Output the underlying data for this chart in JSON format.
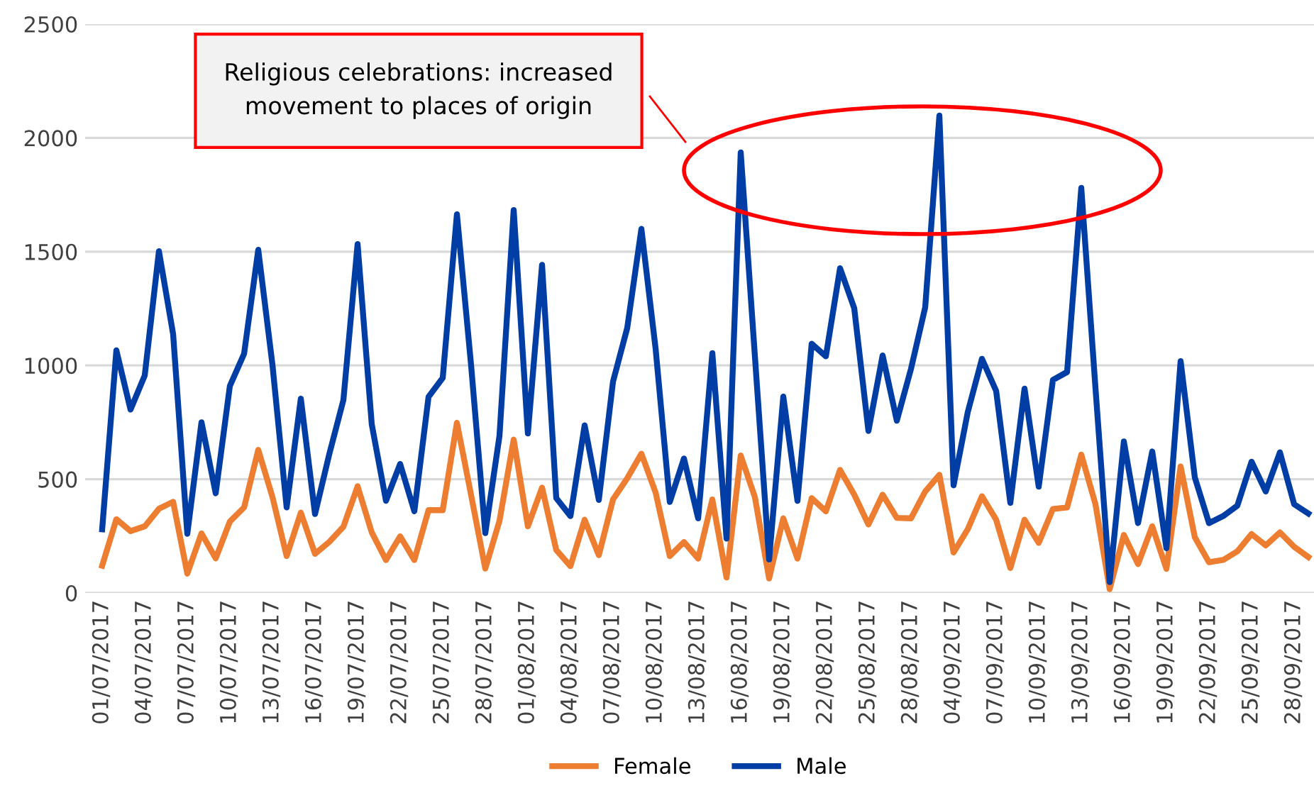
{
  "chart_data": {
    "type": "line",
    "categories": [
      "01/07/2017",
      null,
      null,
      "04/07/2017",
      null,
      null,
      "07/07/2017",
      null,
      null,
      "10/07/2017",
      null,
      null,
      "13/07/2017",
      null,
      null,
      "16/07/2017",
      null,
      null,
      "19/07/2017",
      null,
      null,
      "22/07/2017",
      null,
      null,
      "25/07/2017",
      null,
      null,
      "28/07/2017",
      null,
      null,
      "01/08/2017",
      null,
      null,
      "04/08/2017",
      null,
      null,
      "07/08/2017",
      null,
      null,
      "10/08/2017",
      null,
      null,
      "13/08/2017",
      null,
      null,
      "16/08/2017",
      null,
      null,
      "19/08/2017",
      null,
      null,
      "22/08/2017",
      null,
      null,
      "25/08/2017",
      null,
      null,
      "28/08/2017",
      null,
      null,
      "04/09/2017",
      null,
      null,
      "07/09/2017",
      null,
      null,
      "10/09/2017",
      null,
      null,
      "13/09/2017",
      null,
      null,
      "16/09/2017",
      null,
      null,
      "19/09/2017",
      null,
      null,
      "22/09/2017",
      null,
      null,
      "25/09/2017",
      null,
      null,
      "28/09/2017",
      null
    ],
    "series": [
      {
        "name": "Female",
        "color": "#ed7d31",
        "values": [
          120,
          324,
          272,
          293,
          370,
          401,
          85,
          262,
          152,
          314,
          376,
          629,
          422,
          162,
          353,
          172,
          224,
          291,
          469,
          266,
          145,
          249,
          145,
          364,
          364,
          748,
          430,
          107,
          317,
          674,
          293,
          463,
          189,
          118,
          322,
          166,
          411,
          504,
          612,
          442,
          162,
          224,
          151,
          411,
          68,
          604,
          421,
          64,
          328,
          151,
          417,
          359,
          541,
          432,
          301,
          432,
          330,
          328,
          446,
          519,
          178,
          280,
          425,
          322,
          110,
          322,
          220,
          369,
          376,
          608,
          390,
          17,
          255,
          127,
          293,
          106,
          556,
          245,
          135,
          145,
          183,
          259,
          209,
          266,
          203,
          158
        ]
      },
      {
        "name": "Male",
        "color": "#003da5",
        "values": [
          280,
          1066,
          806,
          956,
          1502,
          1138,
          260,
          750,
          438,
          910,
          1051,
          1508,
          1003,
          376,
          854,
          347,
          609,
          848,
          1533,
          740,
          405,
          567,
          359,
          862,
          945,
          1664,
          1000,
          263,
          691,
          1683,
          701,
          1442,
          417,
          338,
          737,
          409,
          929,
          1164,
          1600,
          1075,
          400,
          591,
          328,
          1054,
          239,
          1936,
          1040,
          147,
          863,
          405,
          1095,
          1040,
          1427,
          1251,
          712,
          1044,
          757,
          985,
          1255,
          2098,
          473,
          795,
          1029,
          888,
          396,
          898,
          467,
          936,
          971,
          1780,
          900,
          48,
          666,
          307,
          622,
          197,
          1019,
          508,
          307,
          338,
          384,
          577,
          446,
          618,
          390,
          349
        ]
      }
    ],
    "ylim": [
      0,
      2500
    ],
    "yticks": [
      0,
      500,
      1000,
      1500,
      2000,
      2500
    ],
    "grid": "y",
    "legend": "bottom",
    "line_style": "solid",
    "marker": "none",
    "annotations": [
      "Religious celebrations: increased\nmovement to places of origin"
    ]
  }
}
